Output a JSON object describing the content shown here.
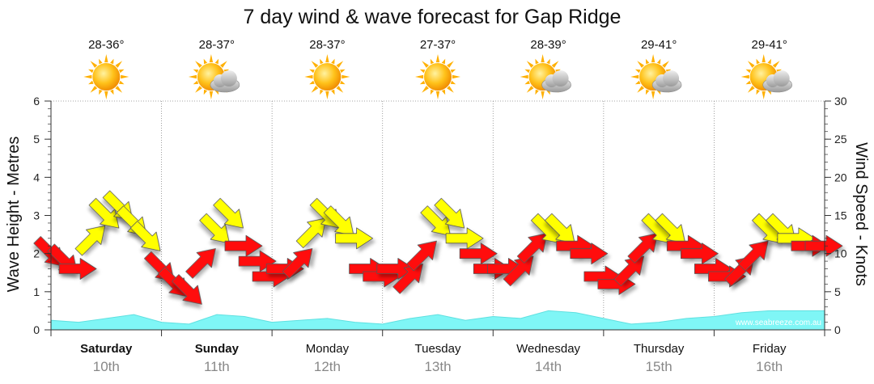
{
  "title": "7 day wind & wave forecast for Gap Ridge",
  "watermark": "www.seabreeze.com.au",
  "colors": {
    "wave_fill": "#7ff6f6",
    "wave_line": "#5fe0e0",
    "wind_strong": "#ff0a0a",
    "wind_light": "#ffff00",
    "grid": "#888888"
  },
  "days": [
    {
      "day": "Saturday",
      "date": "10th",
      "temp": "28-36°",
      "icon": "sun-icon",
      "bold": true
    },
    {
      "day": "Sunday",
      "date": "11th",
      "temp": "28-37°",
      "icon": "sun-cloud-icon",
      "bold": true
    },
    {
      "day": "Monday",
      "date": "12th",
      "temp": "28-37°",
      "icon": "sun-icon",
      "bold": false
    },
    {
      "day": "Tuesday",
      "date": "13th",
      "temp": "27-37°",
      "icon": "sun-icon",
      "bold": false
    },
    {
      "day": "Wednesday",
      "date": "14th",
      "temp": "28-39°",
      "icon": "sun-cloud-icon",
      "bold": false
    },
    {
      "day": "Thursday",
      "date": "15th",
      "temp": "29-41°",
      "icon": "sun-cloud-icon",
      "bold": false
    },
    {
      "day": "Friday",
      "date": "16th",
      "temp": "29-41°",
      "icon": "sun-cloud-icon",
      "bold": false
    }
  ],
  "chart_data": {
    "type": "area",
    "title": "7 day wind & wave forecast for Gap Ridge",
    "xlabel": "",
    "ylabel": "Wave Height - Metres",
    "y2label": "Wind Speed - Knots",
    "ylim": [
      0,
      6
    ],
    "y2lim": [
      0,
      30
    ],
    "yticks": [
      0,
      1,
      2,
      3,
      4,
      5,
      6
    ],
    "y2ticks": [
      0,
      5,
      10,
      15,
      20,
      25,
      30
    ],
    "x_unit": "days from Saturday 00:00",
    "grid": true,
    "wave_height": {
      "name": "Wave Height",
      "x": [
        0,
        0.25,
        0.5,
        0.75,
        1.0,
        1.25,
        1.5,
        1.75,
        2.0,
        2.25,
        2.5,
        2.75,
        3.0,
        3.25,
        3.5,
        3.75,
        4.0,
        4.25,
        4.5,
        4.75,
        5.0,
        5.25,
        5.5,
        5.75,
        6.0,
        6.25,
        6.5,
        6.75,
        7.0
      ],
      "values": [
        0.25,
        0.2,
        0.3,
        0.4,
        0.2,
        0.15,
        0.4,
        0.35,
        0.2,
        0.25,
        0.3,
        0.2,
        0.15,
        0.3,
        0.4,
        0.25,
        0.35,
        0.3,
        0.5,
        0.45,
        0.3,
        0.15,
        0.2,
        0.3,
        0.35,
        0.45,
        0.5,
        0.5,
        0.5
      ]
    },
    "wind": {
      "name": "Wind",
      "x": [
        0.0,
        0.125,
        0.25,
        0.375,
        0.5,
        0.625,
        0.75,
        0.875,
        1.0,
        1.125,
        1.25,
        1.375,
        1.5,
        1.625,
        1.75,
        1.875,
        2.0,
        2.125,
        2.25,
        2.375,
        2.5,
        2.625,
        2.75,
        2.875,
        3.0,
        3.125,
        3.25,
        3.375,
        3.5,
        3.625,
        3.75,
        3.875,
        4.0,
        4.125,
        4.25,
        4.375,
        4.5,
        4.625,
        4.75,
        4.875,
        5.0,
        5.125,
        5.25,
        5.375,
        5.5,
        5.625,
        5.75,
        5.875,
        6.0,
        6.125,
        6.25,
        6.375,
        6.5,
        6.625,
        6.75,
        6.875,
        7.0
      ],
      "speed_knots": [
        10,
        9,
        8,
        12,
        15,
        16,
        14,
        12,
        8,
        6,
        5,
        9,
        13,
        15,
        11,
        9,
        7,
        8,
        9,
        13,
        15,
        14,
        12,
        8,
        7,
        8,
        7,
        10,
        14,
        15,
        12,
        10,
        8,
        8,
        8,
        11,
        13,
        13,
        11,
        10,
        7,
        6,
        8,
        11,
        13,
        13,
        11,
        10,
        8,
        7,
        8,
        10,
        13,
        13,
        12,
        11,
        11
      ],
      "direction": [
        "NW",
        "NW",
        "W",
        "SW",
        "NW",
        "NW",
        "NW",
        "NW",
        "NW",
        "NW",
        "NW",
        "SW",
        "NW",
        "NW",
        "W",
        "W",
        "W",
        "W",
        "SW",
        "SW",
        "NW",
        "NW",
        "W",
        "W",
        "W",
        "W",
        "SW",
        "SW",
        "NW",
        "NW",
        "W",
        "W",
        "W",
        "W",
        "SW",
        "SW",
        "NW",
        "NW",
        "W",
        "W",
        "W",
        "W",
        "SW",
        "SW",
        "NW",
        "NW",
        "W",
        "W",
        "W",
        "W",
        "SW",
        "SW",
        "NW",
        "NW",
        "W",
        "W",
        "W"
      ]
    }
  }
}
